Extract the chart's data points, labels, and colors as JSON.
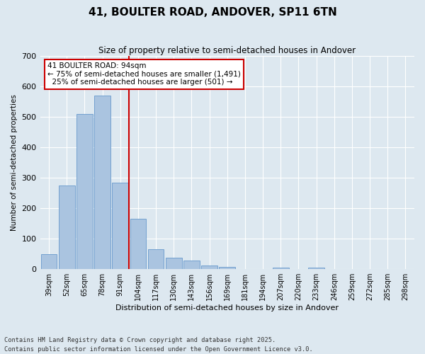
{
  "title": "41, BOULTER ROAD, ANDOVER, SP11 6TN",
  "subtitle": "Size of property relative to semi-detached houses in Andover",
  "xlabel": "Distribution of semi-detached houses by size in Andover",
  "ylabel": "Number of semi-detached properties",
  "categories": [
    "39sqm",
    "52sqm",
    "65sqm",
    "78sqm",
    "91sqm",
    "104sqm",
    "117sqm",
    "130sqm",
    "143sqm",
    "156sqm",
    "169sqm",
    "181sqm",
    "194sqm",
    "207sqm",
    "220sqm",
    "233sqm",
    "246sqm",
    "259sqm",
    "272sqm",
    "285sqm",
    "298sqm"
  ],
  "values": [
    50,
    275,
    510,
    570,
    285,
    165,
    65,
    38,
    28,
    12,
    8,
    0,
    0,
    5,
    0,
    5,
    0,
    0,
    0,
    0,
    0
  ],
  "bar_color": "#aac4e0",
  "bar_edge_color": "#6699cc",
  "vline_color": "#cc0000",
  "property_size": "94sqm",
  "pct_smaller": 75,
  "count_smaller": 1491,
  "pct_larger": 25,
  "count_larger": 501,
  "annotation_box_color": "#cc0000",
  "background_color": "#dde8f0",
  "footer": "Contains HM Land Registry data © Crown copyright and database right 2025.\nContains public sector information licensed under the Open Government Licence v3.0.",
  "ylim": [
    0,
    700
  ],
  "yticks": [
    0,
    100,
    200,
    300,
    400,
    500,
    600,
    700
  ]
}
